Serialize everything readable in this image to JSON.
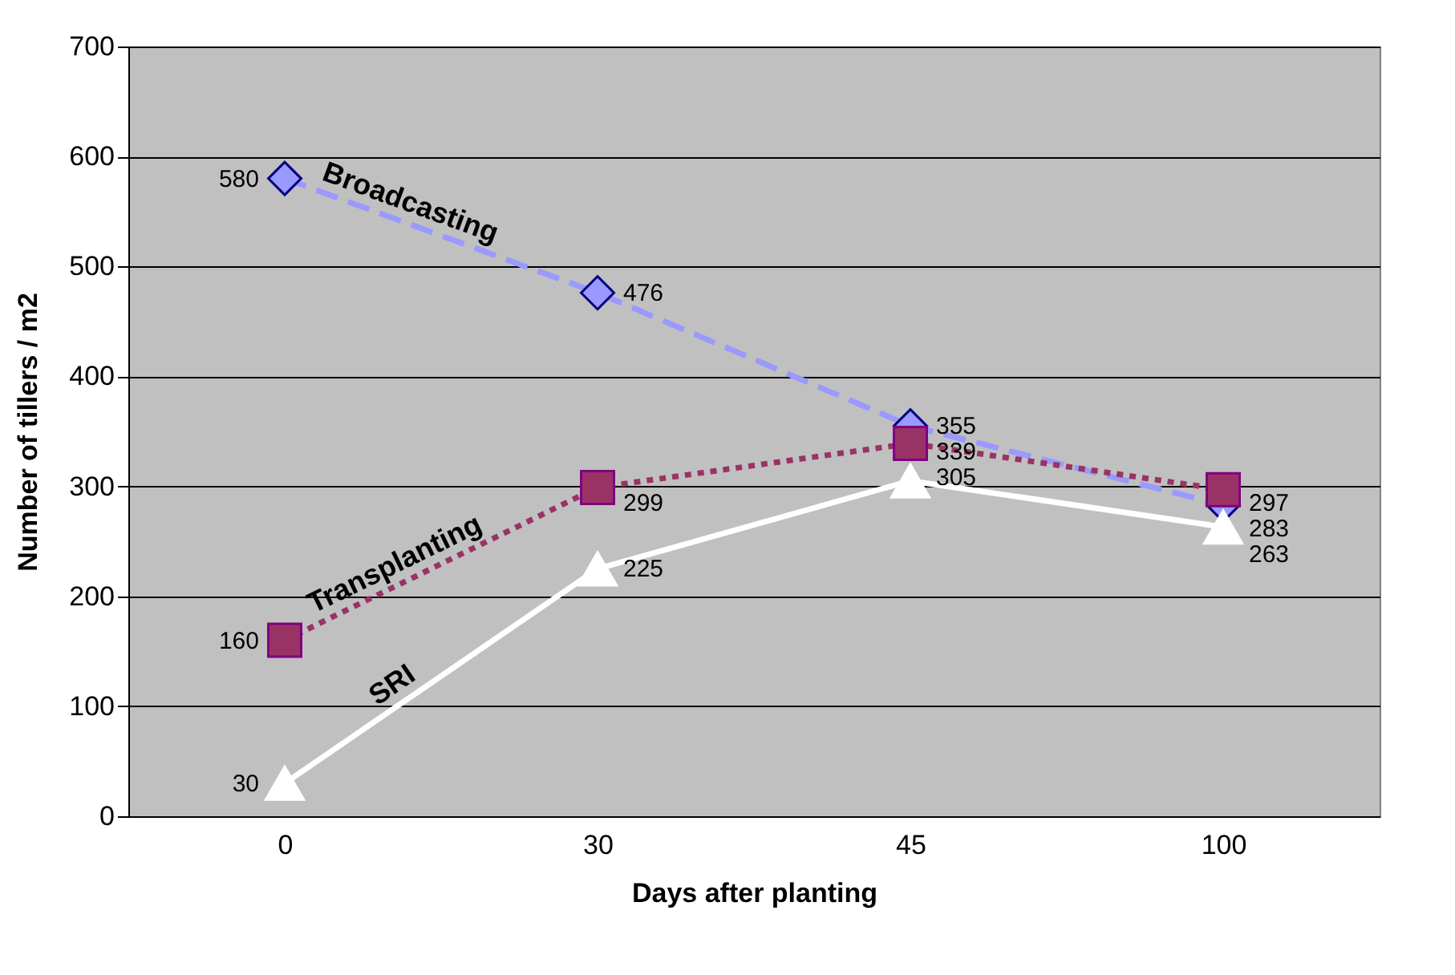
{
  "chart_data": {
    "type": "line",
    "xlabel": "Days after planting",
    "ylabel": "Number of tillers / m2",
    "categories": [
      "0",
      "30",
      "45",
      "100"
    ],
    "ylim": [
      0,
      700
    ],
    "yticks": [
      0,
      100,
      200,
      300,
      400,
      500,
      600,
      700
    ],
    "grid": "y",
    "data_labels": true,
    "series": [
      {
        "name": "Broadcasting",
        "color": "#9999ff",
        "marker": "diamond",
        "line_style": "dashed",
        "values": [
          580,
          476,
          355,
          283
        ]
      },
      {
        "name": "Transplanting",
        "color": "#993366",
        "marker": "square",
        "line_style": "dotted",
        "values": [
          160,
          299,
          339,
          297
        ]
      },
      {
        "name": "SRI",
        "color": "#ffffff",
        "marker": "triangle",
        "line_style": "solid",
        "values": [
          30,
          225,
          305,
          263
        ]
      }
    ]
  }
}
